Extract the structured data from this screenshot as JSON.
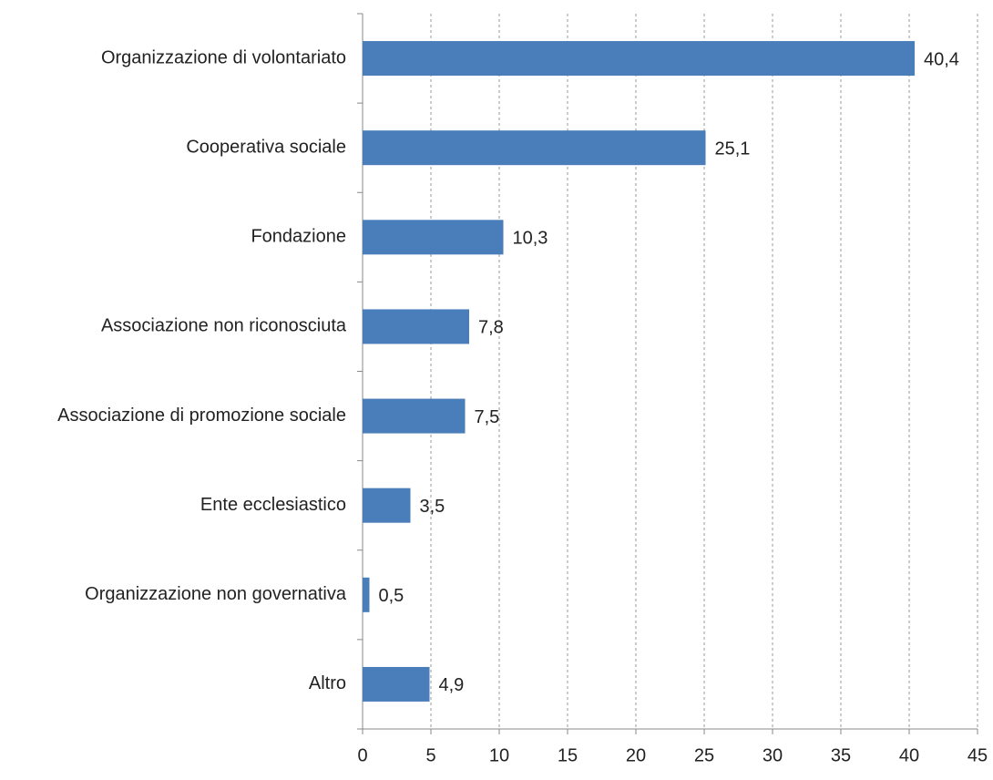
{
  "chart_data": {
    "type": "barh",
    "categories": [
      "Organizzazione di volontariato",
      "Cooperativa sociale",
      "Fondazione",
      "Associazione non riconosciuta",
      "Associazione di promozione sociale",
      "Ente ecclesiastico",
      "Organizzazione non governativa",
      "Altro"
    ],
    "values": [
      40.4,
      25.1,
      10.3,
      7.8,
      7.5,
      3.5,
      0.5,
      4.9
    ],
    "value_labels": [
      "40,4",
      "25,1",
      "10,3",
      "7,8",
      "7,5",
      "3,5",
      "0,5",
      "4,9"
    ],
    "color": "#4a7ebb",
    "xlim": [
      0,
      45
    ],
    "xticks": [
      0,
      5,
      10,
      15,
      20,
      25,
      30,
      35,
      40,
      45
    ],
    "grid": true
  }
}
